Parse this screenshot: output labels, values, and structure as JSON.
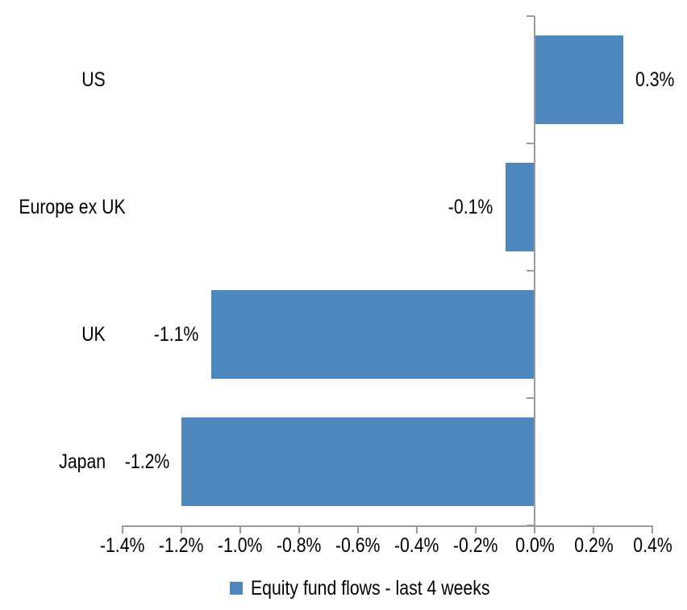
{
  "chart_data": {
    "type": "bar",
    "orientation": "horizontal",
    "title": "",
    "categories": [
      "US",
      "Europe ex UK",
      "UK",
      "Japan"
    ],
    "values": [
      0.3,
      -0.1,
      -1.1,
      -1.2
    ],
    "data_labels": [
      "0.3%",
      "-0.1%",
      "-1.1%",
      "-1.2%"
    ],
    "series_name": "Equity fund flows - last 4 weeks",
    "unit": "%",
    "xlabel": "",
    "ylabel": "",
    "xlim": [
      -1.4,
      0.4
    ],
    "x_ticks": [
      -1.4,
      -1.2,
      -1.0,
      -0.8,
      -0.6,
      -0.4,
      -0.2,
      0.0,
      0.2,
      0.4
    ],
    "x_tick_labels": [
      "-1.4%",
      "-1.2%",
      "-1.0%",
      "-0.8%",
      "-0.6%",
      "-0.4%",
      "-0.2%",
      "0.0%",
      "0.2%",
      "0.4%"
    ],
    "grid": false,
    "data_label_position": "outside-end",
    "legend_position": "bottom",
    "colors": {
      "bar": "#4E86BE",
      "axis": "#9B9B9B",
      "text": "#000000",
      "background": "#FFFFFF"
    }
  }
}
